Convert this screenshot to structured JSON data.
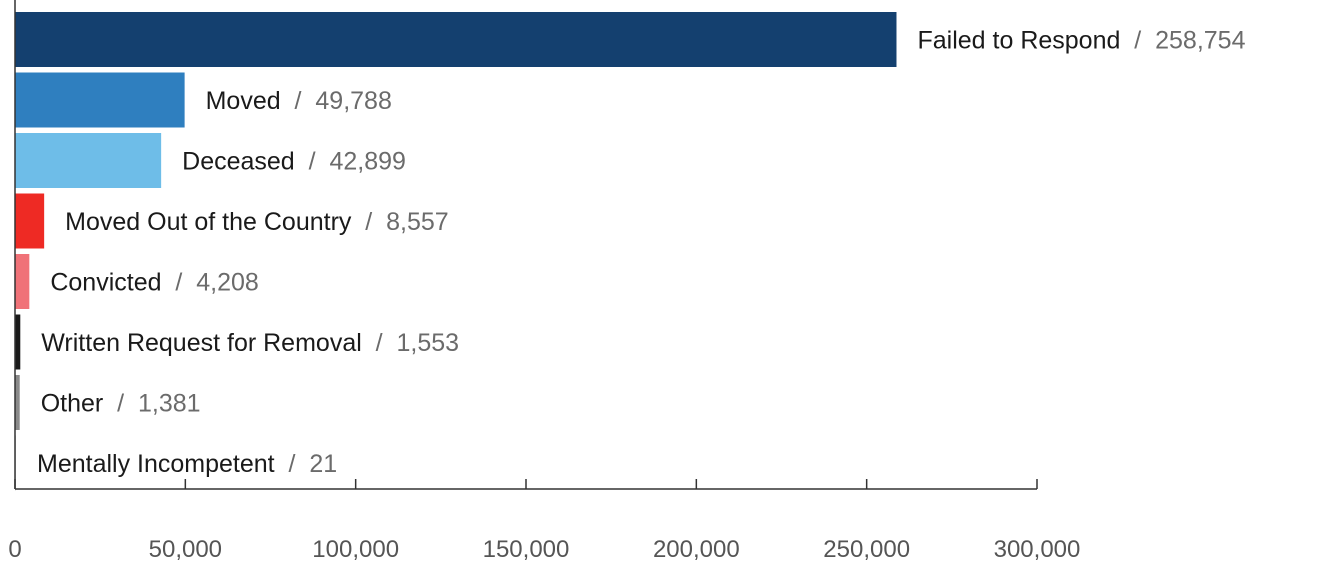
{
  "chart_data": {
    "type": "bar",
    "orientation": "horizontal",
    "title": "",
    "xlabel": "",
    "ylabel": "",
    "xlim": [
      0,
      300000
    ],
    "xticks": [
      0,
      50000,
      100000,
      150000,
      200000,
      250000,
      300000
    ],
    "xtick_labels": [
      "0",
      "50,000",
      "100,000",
      "150,000",
      "200,000",
      "250,000",
      "300,000"
    ],
    "grid": false,
    "legend": "none",
    "separator": "/",
    "categories": [
      "Failed to Respond",
      "Moved",
      "Deceased",
      "Moved Out of the Country",
      "Convicted",
      "Written Request for Removal",
      "Other",
      "Mentally Incompetent"
    ],
    "values": [
      258754,
      49788,
      42899,
      8557,
      4208,
      1553,
      1381,
      21
    ],
    "value_labels": [
      "258,754",
      "49,788",
      "42,899",
      "8,557",
      "4,208",
      "1,553",
      "1,381",
      "21"
    ],
    "colors": [
      "#14406f",
      "#2f7fbf",
      "#6ebde8",
      "#ee2a24",
      "#f07278",
      "#1a1a1a",
      "#8a8a8a",
      "#d9d9d9"
    ]
  }
}
